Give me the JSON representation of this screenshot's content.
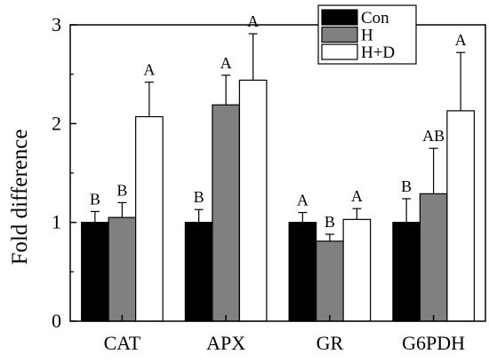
{
  "chart_data": {
    "type": "bar",
    "categories": [
      "CAT",
      "APX",
      "GR",
      "G6PDH"
    ],
    "ylabel": "Fold difference",
    "xlabel": "",
    "ylim": [
      0,
      3
    ],
    "yticks": [
      "0",
      "1",
      "2",
      "3"
    ],
    "grid": false,
    "legend_position": "top-right",
    "series": [
      {
        "name": "Con",
        "color": "#000000",
        "values": [
          1.0,
          1.0,
          1.0,
          1.0
        ],
        "errors": [
          0.11,
          0.13,
          0.1,
          0.24
        ],
        "labels": [
          "B",
          "B",
          "A",
          "B"
        ]
      },
      {
        "name": "H",
        "color": "#808080",
        "values": [
          1.05,
          2.19,
          0.81,
          1.29
        ],
        "errors": [
          0.15,
          0.3,
          0.07,
          0.46
        ],
        "labels": [
          "B",
          "A",
          "B",
          "AB"
        ]
      },
      {
        "name": "H+D",
        "color": "#ffffff",
        "values": [
          2.07,
          2.44,
          1.03,
          2.13
        ],
        "errors": [
          0.35,
          0.47,
          0.11,
          0.59
        ],
        "labels": [
          "A",
          "A",
          "A",
          "A"
        ]
      }
    ]
  }
}
